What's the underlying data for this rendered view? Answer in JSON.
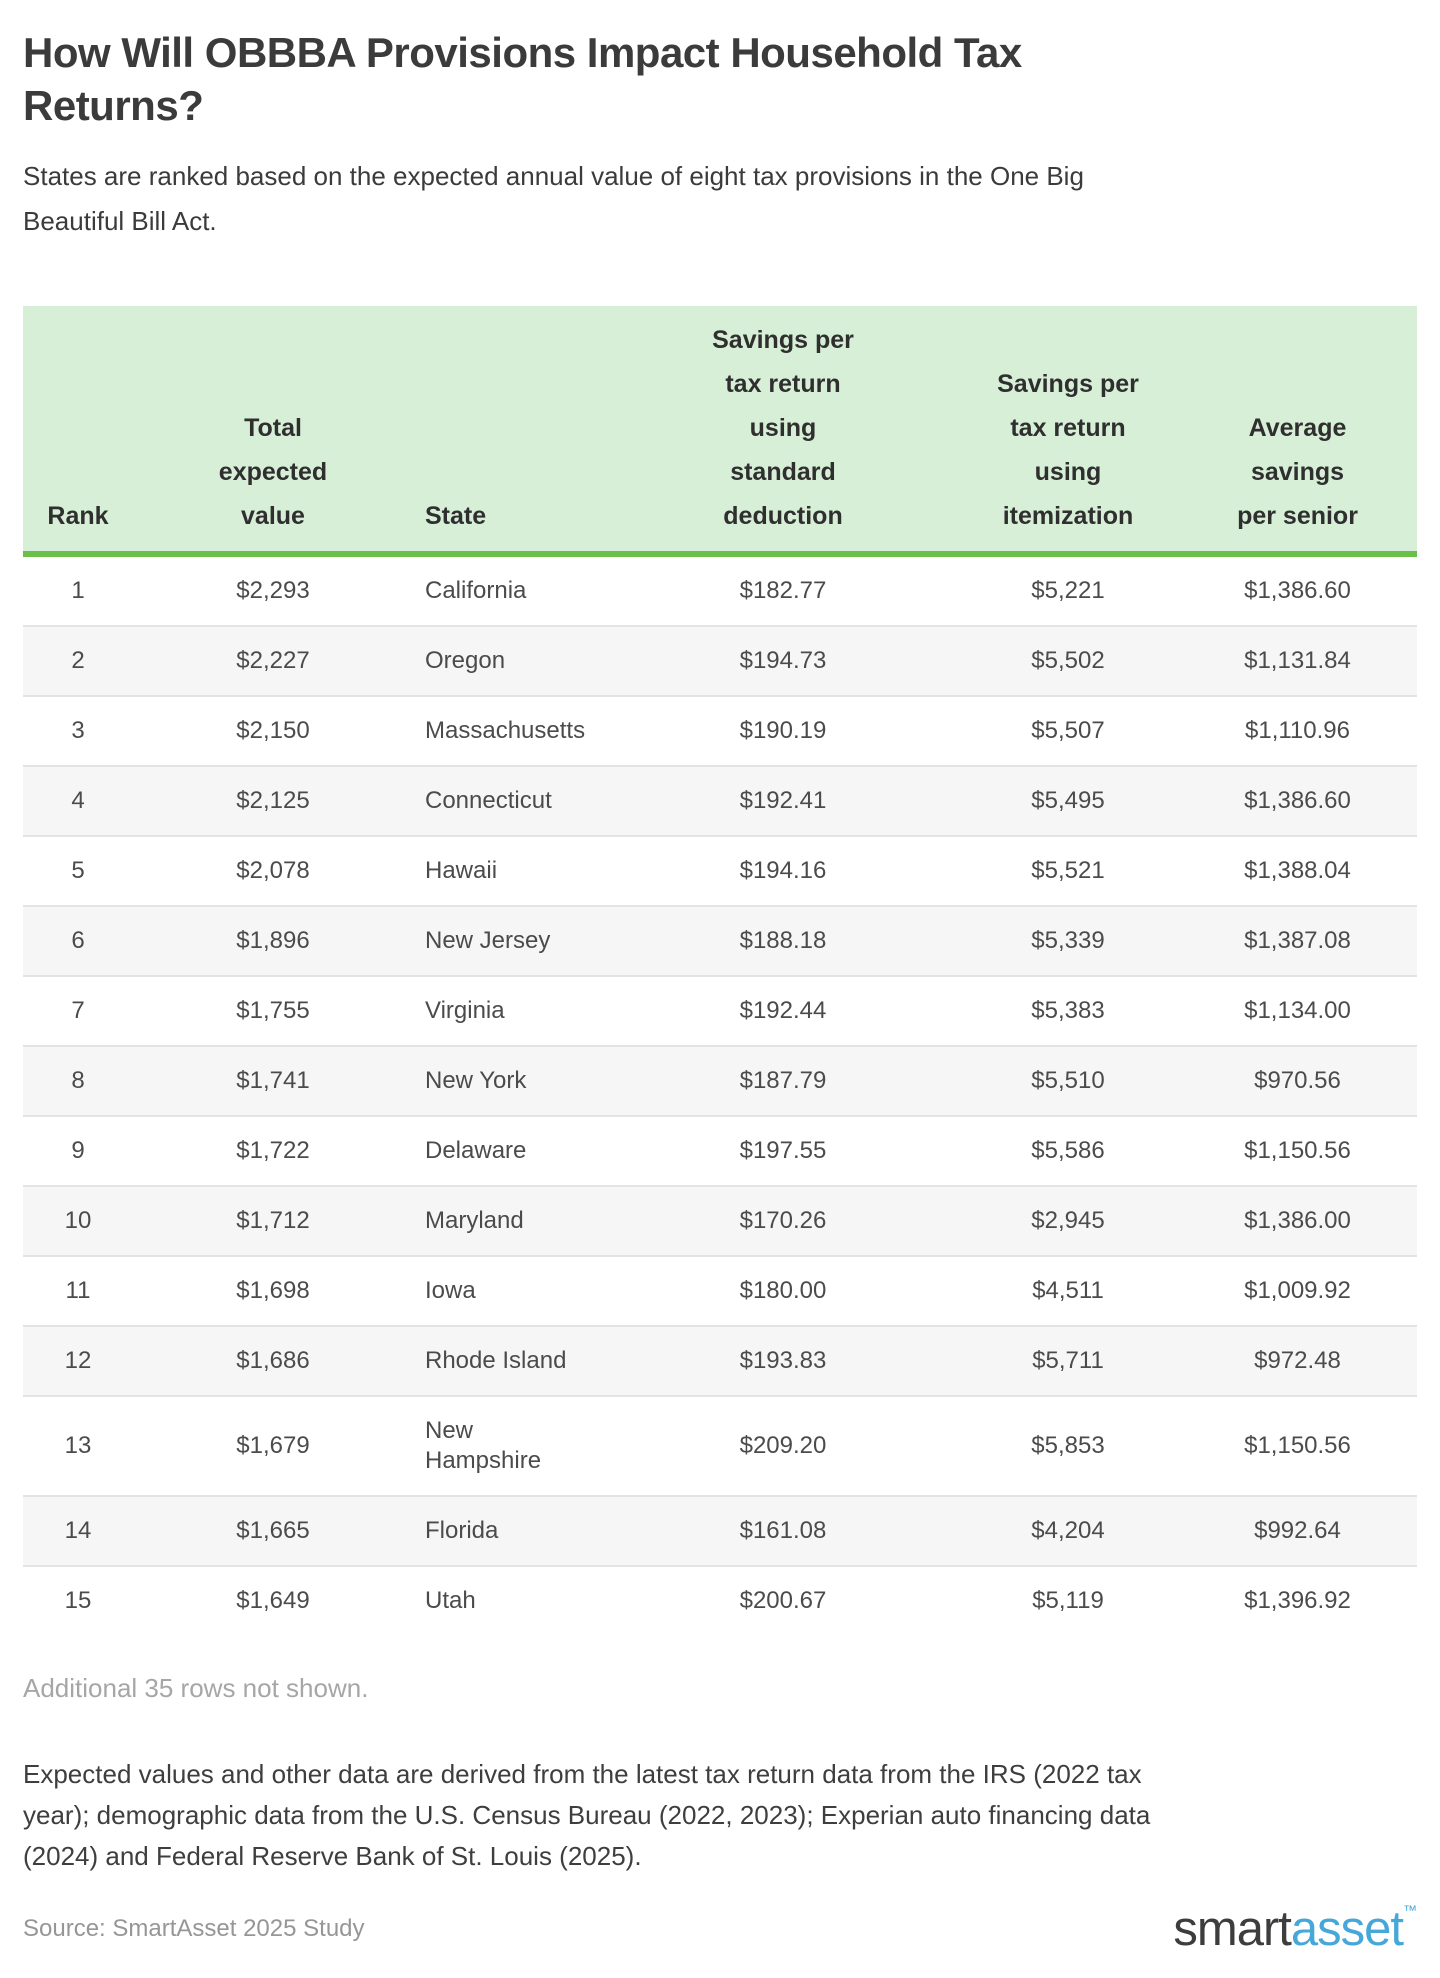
{
  "colors": {
    "header_background_green": "#d7efd7",
    "header_border_green": "#6abf4b",
    "row_stripe_gray": "#f6f6f6",
    "logo_blue": "#46a7d9"
  },
  "header": {
    "title": "How Will OBBBA Provisions Impact Household Tax Returns?",
    "subtitle": "States are ranked based on the expected annual value of eight tax provisions in the One Big Beautiful Bill Act."
  },
  "chart_data": {
    "type": "table",
    "title": "How Will OBBBA Provisions Impact Household Tax Returns?",
    "subtitle": "States are ranked based on the expected annual value of eight tax provisions in the One Big Beautiful Bill Act.",
    "columns": [
      "Rank",
      "Total expected value",
      "State",
      "Savings per tax return using standard deduction",
      "Savings per tax return using itemization",
      "Average savings per senior"
    ],
    "column_header_lines": [
      "Rank",
      "Total\nexpected\nvalue",
      "State",
      "Savings per\ntax return\nusing\nstandard\ndeduction",
      "Savings per\ntax return\nusing\nitemization",
      "Average\nsavings\nper senior"
    ],
    "rows": [
      [
        "1",
        "$2,293",
        "California",
        "$182.77",
        "$5,221",
        "$1,386.60"
      ],
      [
        "2",
        "$2,227",
        "Oregon",
        "$194.73",
        "$5,502",
        "$1,131.84"
      ],
      [
        "3",
        "$2,150",
        "Massachusetts",
        "$190.19",
        "$5,507",
        "$1,110.96"
      ],
      [
        "4",
        "$2,125",
        "Connecticut",
        "$192.41",
        "$5,495",
        "$1,386.60"
      ],
      [
        "5",
        "$2,078",
        "Hawaii",
        "$194.16",
        "$5,521",
        "$1,388.04"
      ],
      [
        "6",
        "$1,896",
        "New Jersey",
        "$188.18",
        "$5,339",
        "$1,387.08"
      ],
      [
        "7",
        "$1,755",
        "Virginia",
        "$192.44",
        "$5,383",
        "$1,134.00"
      ],
      [
        "8",
        "$1,741",
        "New York",
        "$187.79",
        "$5,510",
        "$970.56"
      ],
      [
        "9",
        "$1,722",
        "Delaware",
        "$197.55",
        "$5,586",
        "$1,150.56"
      ],
      [
        "10",
        "$1,712",
        "Maryland",
        "$170.26",
        "$2,945",
        "$1,386.00"
      ],
      [
        "11",
        "$1,698",
        "Iowa",
        "$180.00",
        "$4,511",
        "$1,009.92"
      ],
      [
        "12",
        "$1,686",
        "Rhode Island",
        "$193.83",
        "$5,711",
        "$972.48"
      ],
      [
        "13",
        "$1,679",
        "New Hampshire",
        "$209.20",
        "$5,853",
        "$1,150.56"
      ],
      [
        "14",
        "$1,665",
        "Florida",
        "$161.08",
        "$4,204",
        "$992.64"
      ],
      [
        "15",
        "$1,649",
        "Utah",
        "$200.67",
        "$5,119",
        "$1,396.92"
      ]
    ]
  },
  "footer": {
    "additional_note": "Additional 35 rows not shown.",
    "methodology": "Expected values and other data are derived from the latest tax return data from the IRS (2022 tax year); demographic data from the U.S. Census Bureau (2022, 2023); Experian auto financing data (2024) and Federal Reserve Bank of St. Louis (2025).",
    "source": "Source: SmartAsset 2025 Study",
    "logo": {
      "prefix": "smart",
      "suffix": "asset",
      "tm": "™"
    }
  }
}
